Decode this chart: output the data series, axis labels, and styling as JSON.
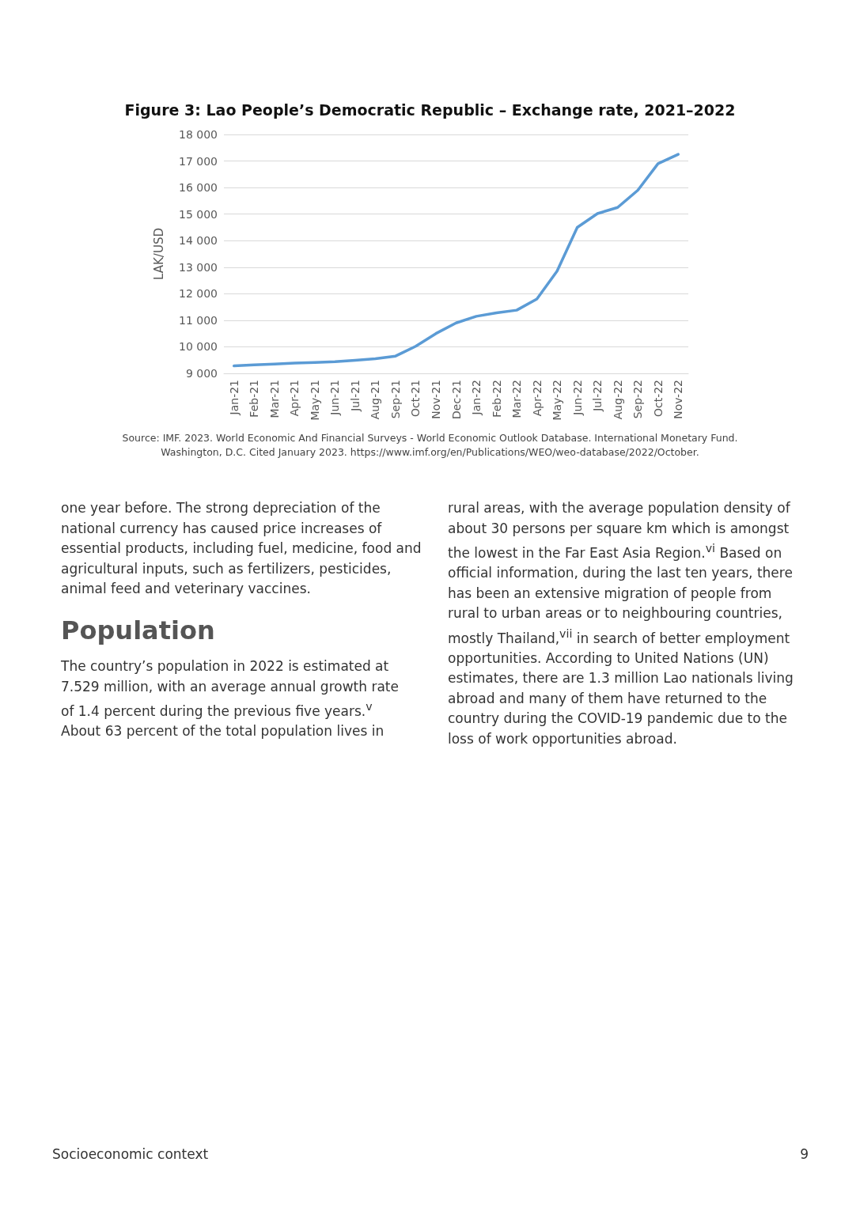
{
  "chart_data": {
    "type": "line",
    "title": "Figure 3: Lao People’s Democratic Republic – Exchange rate, 2021–2022",
    "ylabel": "LAK/USD",
    "categories": [
      "Jan-21",
      "Feb-21",
      "Mar-21",
      "Apr-21",
      "May-21",
      "Jun-21",
      "Jul-21",
      "Aug-21",
      "Sep-21",
      "Oct-21",
      "Nov-21",
      "Dec-21",
      "Jan-22",
      "Feb-22",
      "Mar-22",
      "Apr-22",
      "May-22",
      "Jun-22",
      "Jul-22",
      "Aug-22",
      "Sep-22",
      "Oct-22",
      "Nov-22"
    ],
    "series": [
      {
        "color": "#5b9bd5",
        "values": [
          9280,
          9320,
          9350,
          9390,
          9410,
          9440,
          9490,
          9550,
          9650,
          10020,
          10500,
          10900,
          11150,
          11280,
          11380,
          11800,
          12850,
          14500,
          15020,
          15250,
          15900,
          16900,
          17250
        ]
      }
    ],
    "ylim": [
      9000,
      18000
    ],
    "yticks": [
      {
        "value": 9000,
        "label": "9 000"
      },
      {
        "value": 10000,
        "label": "10 000"
      },
      {
        "value": 11000,
        "label": "11 000"
      },
      {
        "value": 12000,
        "label": "12 000"
      },
      {
        "value": 13000,
        "label": "13 000"
      },
      {
        "value": 14000,
        "label": "14 000"
      },
      {
        "value": 15000,
        "label": "15 000"
      },
      {
        "value": 16000,
        "label": "16 000"
      },
      {
        "value": 17000,
        "label": "17 000"
      },
      {
        "value": 18000,
        "label": "18 000"
      }
    ],
    "grid": "y",
    "marker": "none",
    "line_style": "solid",
    "annotations": [
      "Source: IMF. 2023. World Economic And Financial Surveys - World Economic Outlook Database. International Monetary Fund. Washington, D.C. Cited January 2023. https://www.imf.org/en/Publications/WEO/weo-database/2022/October.",
      "one year before. The strong depreciation of the national currency has caused price increases of essential products, including fuel, medicine, food and agricultural inputs, such as fertilizers, pesticides, animal feed and veterinary vaccines.",
      "Population",
      "The country’s population in 2022 is estimated at 7.529 million, with an average annual growth rate of 1.4 percent during the previous five years.$^{v}$ About 63 percent of the total population lives in",
      "rural areas, with the average population density of about 30 persons per square km which is amongst the lowest in the Far East Asia Region.$^{vi}$ Based on official information, during the last ten years, there has been an extensive migration of people from rural to urban areas or to neighbouring countries, mostly Thailand,$^{vii}$ in search of better employment opportunities. According to United Nations (UN) estimates, there are 1.3 million Lao nationals living abroad and many of them have returned to the country during the COVID-19 pandemic due to the loss of work opportunities abroad.",
      "Socioeconomic context",
      "9"
    ]
  }
}
